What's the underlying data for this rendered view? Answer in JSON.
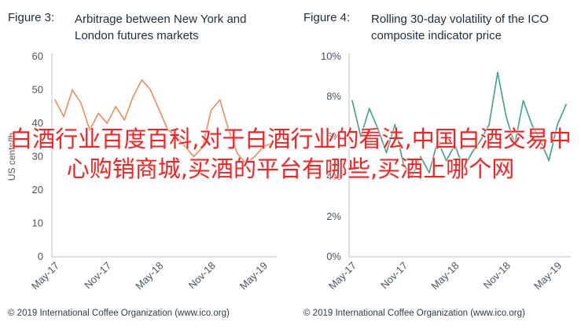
{
  "charts": [
    {
      "figure_label": "Figure 3:",
      "title": "Arbitrage between New York and\nLondon futures markets",
      "footer": "© 2019 International Coffee Organization (www.ico.org)",
      "line_color": "#f28b5a",
      "ytick_labels": [
        "60",
        "50",
        "40",
        "30",
        "20",
        "10",
        "0"
      ],
      "xtick_labels": [
        "May-17",
        "Nov-17",
        "May-18",
        "Nov-18",
        "May-19"
      ],
      "ylabel_visible": "US cents/lb"
    },
    {
      "figure_label": "Figure 4:",
      "title": "Rolling 30-day volatility of the ICO\ncomposite indicator price",
      "footer": "© 2019 International Coffee Organization (www.ico.org)",
      "line_color": "#3aa387",
      "ytick_labels": [
        "10%",
        "8%",
        "6%",
        "4%",
        "2%",
        "0%"
      ],
      "xtick_labels": [
        "May-17",
        "Nov-17",
        "May-18",
        "Nov-18",
        "May-19"
      ]
    }
  ],
  "overlay_text": "白酒行业百度百科,对于白酒行业的看法,中国白酒交易中心购销商城,买酒的平台有哪些,买酒上哪个网",
  "chart_data": [
    {
      "type": "line",
      "title": "Arbitrage between New York and London futures markets",
      "ylabel": "US cents/lb",
      "ylim": [
        0,
        60
      ],
      "x": [
        "May-17",
        "Jun-17",
        "Jul-17",
        "Aug-17",
        "Sep-17",
        "Oct-17",
        "Nov-17",
        "Dec-17",
        "Jan-18",
        "Feb-18",
        "Mar-18",
        "Apr-18",
        "May-18",
        "Jun-18",
        "Jul-18",
        "Aug-18",
        "Sep-18",
        "Oct-18",
        "Nov-18",
        "Dec-18",
        "Jan-19",
        "Feb-19",
        "Mar-19",
        "Apr-19",
        "May-19",
        "Jun-19"
      ],
      "series": [
        {
          "values": [
            47,
            42,
            50,
            46,
            38,
            43,
            40,
            45,
            41,
            48,
            53,
            50,
            44,
            38,
            36,
            33,
            30,
            33,
            44,
            47,
            38,
            31,
            28,
            30,
            33,
            34
          ]
        }
      ],
      "grid": false
    },
    {
      "type": "line",
      "title": "Rolling 30-day volatility of the ICO composite indicator price",
      "ylim": [
        0,
        10
      ],
      "x": [
        "May-17",
        "Jun-17",
        "Jul-17",
        "Aug-17",
        "Sep-17",
        "Oct-17",
        "Nov-17",
        "Dec-17",
        "Jan-18",
        "Feb-18",
        "Mar-18",
        "Apr-18",
        "May-18",
        "Jun-18",
        "Jul-18",
        "Aug-18",
        "Sep-18",
        "Oct-18",
        "Nov-18",
        "Dec-18",
        "Jan-19",
        "Feb-19",
        "Mar-19",
        "Apr-19",
        "May-19",
        "Jun-19"
      ],
      "series": [
        {
          "values": [
            7.8,
            6.0,
            7.4,
            6.4,
            5.2,
            6.6,
            4.6,
            4.0,
            5.0,
            4.2,
            5.8,
            4.8,
            5.6,
            4.4,
            5.2,
            5.8,
            6.6,
            9.2,
            7.0,
            5.6,
            7.8,
            6.6,
            5.8,
            4.8,
            6.6,
            7.6
          ]
        }
      ],
      "grid": false
    }
  ]
}
